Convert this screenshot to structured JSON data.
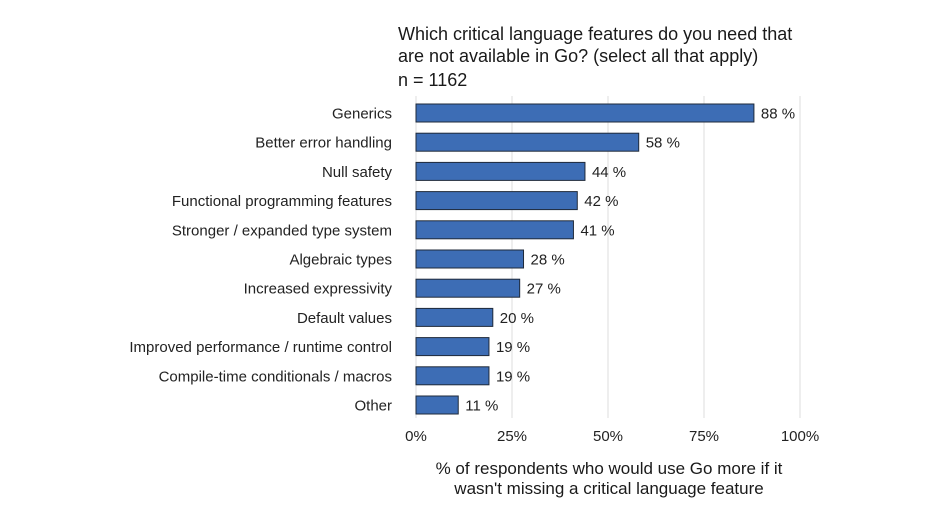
{
  "chart_data": {
    "type": "bar",
    "orientation": "horizontal",
    "title_lines": [
      "Which critical language features do you need that",
      "are not available in Go? (select all that apply)"
    ],
    "subtitle": "n = 1162",
    "categories": [
      "Generics",
      "Better error handling",
      "Null safety",
      "Functional programming features",
      "Stronger / expanded type system",
      "Algebraic types",
      "Increased expressivity",
      "Default values",
      "Improved performance / runtime control",
      "Compile-time conditionals / macros",
      "Other"
    ],
    "values": [
      88,
      58,
      44,
      42,
      41,
      28,
      27,
      20,
      19,
      19,
      11
    ],
    "value_labels": [
      "88 %",
      "58 %",
      "44 %",
      "42 %",
      "41 %",
      "28 %",
      "27 %",
      "20 %",
      "19 %",
      "19 %",
      "11 %"
    ],
    "x_ticks": [
      0,
      25,
      50,
      75,
      100
    ],
    "x_tick_labels": [
      "0%",
      "25%",
      "50%",
      "75%",
      "100%"
    ],
    "xlim": [
      0,
      100
    ],
    "xlabel_lines": [
      "% of respondents who would use Go more if it",
      "wasn't missing a critical language feature"
    ],
    "ylabel": "",
    "grid": "vertical",
    "legend": "none",
    "colors": {
      "bar_fill": "#3d6db5",
      "bar_stroke": "#1f2a3a",
      "grid": "#dedede",
      "text": "#222222"
    }
  }
}
